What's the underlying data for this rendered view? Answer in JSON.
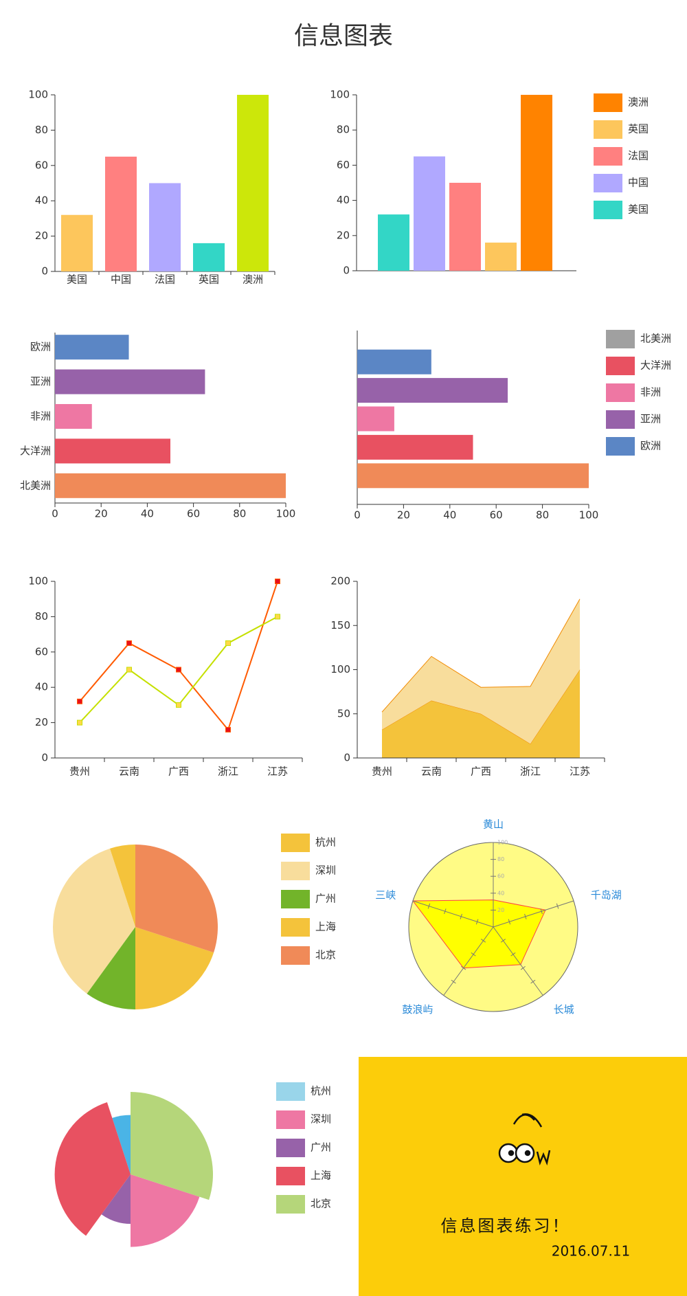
{
  "header": {
    "title": "信息图表"
  },
  "chart_data": [
    {
      "type": "bar",
      "categories": [
        "美国",
        "中国",
        "法国",
        "英国",
        "澳洲"
      ],
      "values": [
        32,
        65,
        50,
        16,
        100
      ],
      "colors": [
        "#fdc65c",
        "#ff8080",
        "#b0a8ff",
        "#33d6c6",
        "#cce70a"
      ],
      "ylim": [
        0,
        100
      ],
      "yticks": [
        0,
        20,
        40,
        60,
        80,
        100
      ]
    },
    {
      "type": "bar",
      "categories": [
        "美国",
        "中国",
        "法国",
        "英国",
        "澳洲"
      ],
      "values": [
        32,
        65,
        50,
        16,
        100
      ],
      "colors": [
        "#33d6c6",
        "#b0a8ff",
        "#ff8080",
        "#fdc65c",
        "#ff8300"
      ],
      "ylim": [
        0,
        100
      ],
      "yticks": [
        0,
        20,
        40,
        60,
        80,
        100
      ],
      "legend": "right"
    },
    {
      "type": "hbar",
      "categories": [
        "北美洲",
        "大洋洲",
        "非洲",
        "亚洲",
        "欧洲"
      ],
      "values": [
        100,
        50,
        16,
        65,
        32
      ],
      "colors": [
        "#f08a58",
        "#e85161",
        "#ee77a3",
        "#9762a9",
        "#5b86c5"
      ],
      "xlim": [
        0,
        100
      ],
      "xticks": [
        0,
        20,
        40,
        60,
        80,
        100
      ]
    },
    {
      "type": "hbar",
      "categories": [
        "北美洲",
        "大洋洲",
        "非洲",
        "亚洲",
        "欧洲"
      ],
      "values": [
        100,
        50,
        16,
        65,
        32
      ],
      "colors": [
        "#f08a58",
        "#e85161",
        "#ee77a3",
        "#9762a9",
        "#5b86c5"
      ],
      "legend_colors": [
        "#a0a0a0",
        "#e85161",
        "#ee77a3",
        "#9762a9",
        "#5b86c5"
      ],
      "xlim": [
        0,
        100
      ],
      "xticks": [
        0,
        20,
        40,
        60,
        80,
        100
      ],
      "legend": "right"
    },
    {
      "type": "line",
      "categories": [
        "贵州",
        "云南",
        "广西",
        "浙江",
        "江苏"
      ],
      "series": [
        {
          "color": "#ff5a00",
          "marker_color": "#e8101c",
          "values": [
            32,
            65,
            50,
            16,
            100
          ]
        },
        {
          "color": "#c5e000",
          "marker_color": "#ffd94a",
          "values": [
            20,
            50,
            30,
            65,
            80
          ]
        }
      ],
      "ylim": [
        0,
        100
      ],
      "yticks": [
        0,
        20,
        40,
        60,
        80,
        100
      ]
    },
    {
      "type": "area",
      "stacked": true,
      "categories": [
        "贵州",
        "云南",
        "广西",
        "浙江",
        "江苏"
      ],
      "series": [
        {
          "color": "#f4c33b",
          "values": [
            32,
            65,
            50,
            16,
            100
          ]
        },
        {
          "color": "#f8dd9c",
          "values": [
            20,
            50,
            30,
            65,
            80
          ]
        }
      ],
      "line_color": "#f08a00",
      "ylim": [
        0,
        200
      ],
      "yticks": [
        0,
        50,
        100,
        150,
        200
      ]
    },
    {
      "type": "pie",
      "categories": [
        "杭州",
        "深圳",
        "广州",
        "上海",
        "北京"
      ],
      "values": [
        5,
        35,
        10,
        20,
        30
      ],
      "colors": [
        "#f4c33b",
        "#f8dd9c",
        "#72b42a",
        "#f4c33b",
        "#f08a58"
      ],
      "legend": "right"
    },
    {
      "type": "radar",
      "categories": [
        "黄山",
        "千岛湖",
        "长城",
        "鼓浪屿",
        "三峡"
      ],
      "values": [
        32,
        65,
        55,
        60,
        100
      ],
      "rlim": [
        0,
        100
      ],
      "rticks": [
        20,
        40,
        60,
        80,
        100
      ],
      "color": "#ffff00",
      "line_color": "#ff4040",
      "background": "#fffb85",
      "label_color": "#2a8ad8"
    },
    {
      "type": "rose",
      "legend": [
        {
          "name": "杭州",
          "color": "#99d5ea"
        },
        {
          "name": "深圳",
          "color": "#ee77a3"
        },
        {
          "name": "广州",
          "color": "#9762a9"
        },
        {
          "name": "上海",
          "color": "#e85161"
        },
        {
          "name": "北京",
          "color": "#b5d67a"
        }
      ],
      "slices": {
        "values": [
          5,
          35,
          10,
          20,
          30
        ],
        "radii": [
          72,
          92,
          60,
          88,
          100
        ],
        "colors": [
          "#4ab4e6",
          "#e85161",
          "#9762a9",
          "#ee77a3",
          "#b5d67a"
        ]
      },
      "rlim": [
        0,
        100
      ]
    }
  ],
  "panel": {
    "text": "信息图表练习！",
    "date": "2016.07.11",
    "color": "#fccd0a"
  }
}
